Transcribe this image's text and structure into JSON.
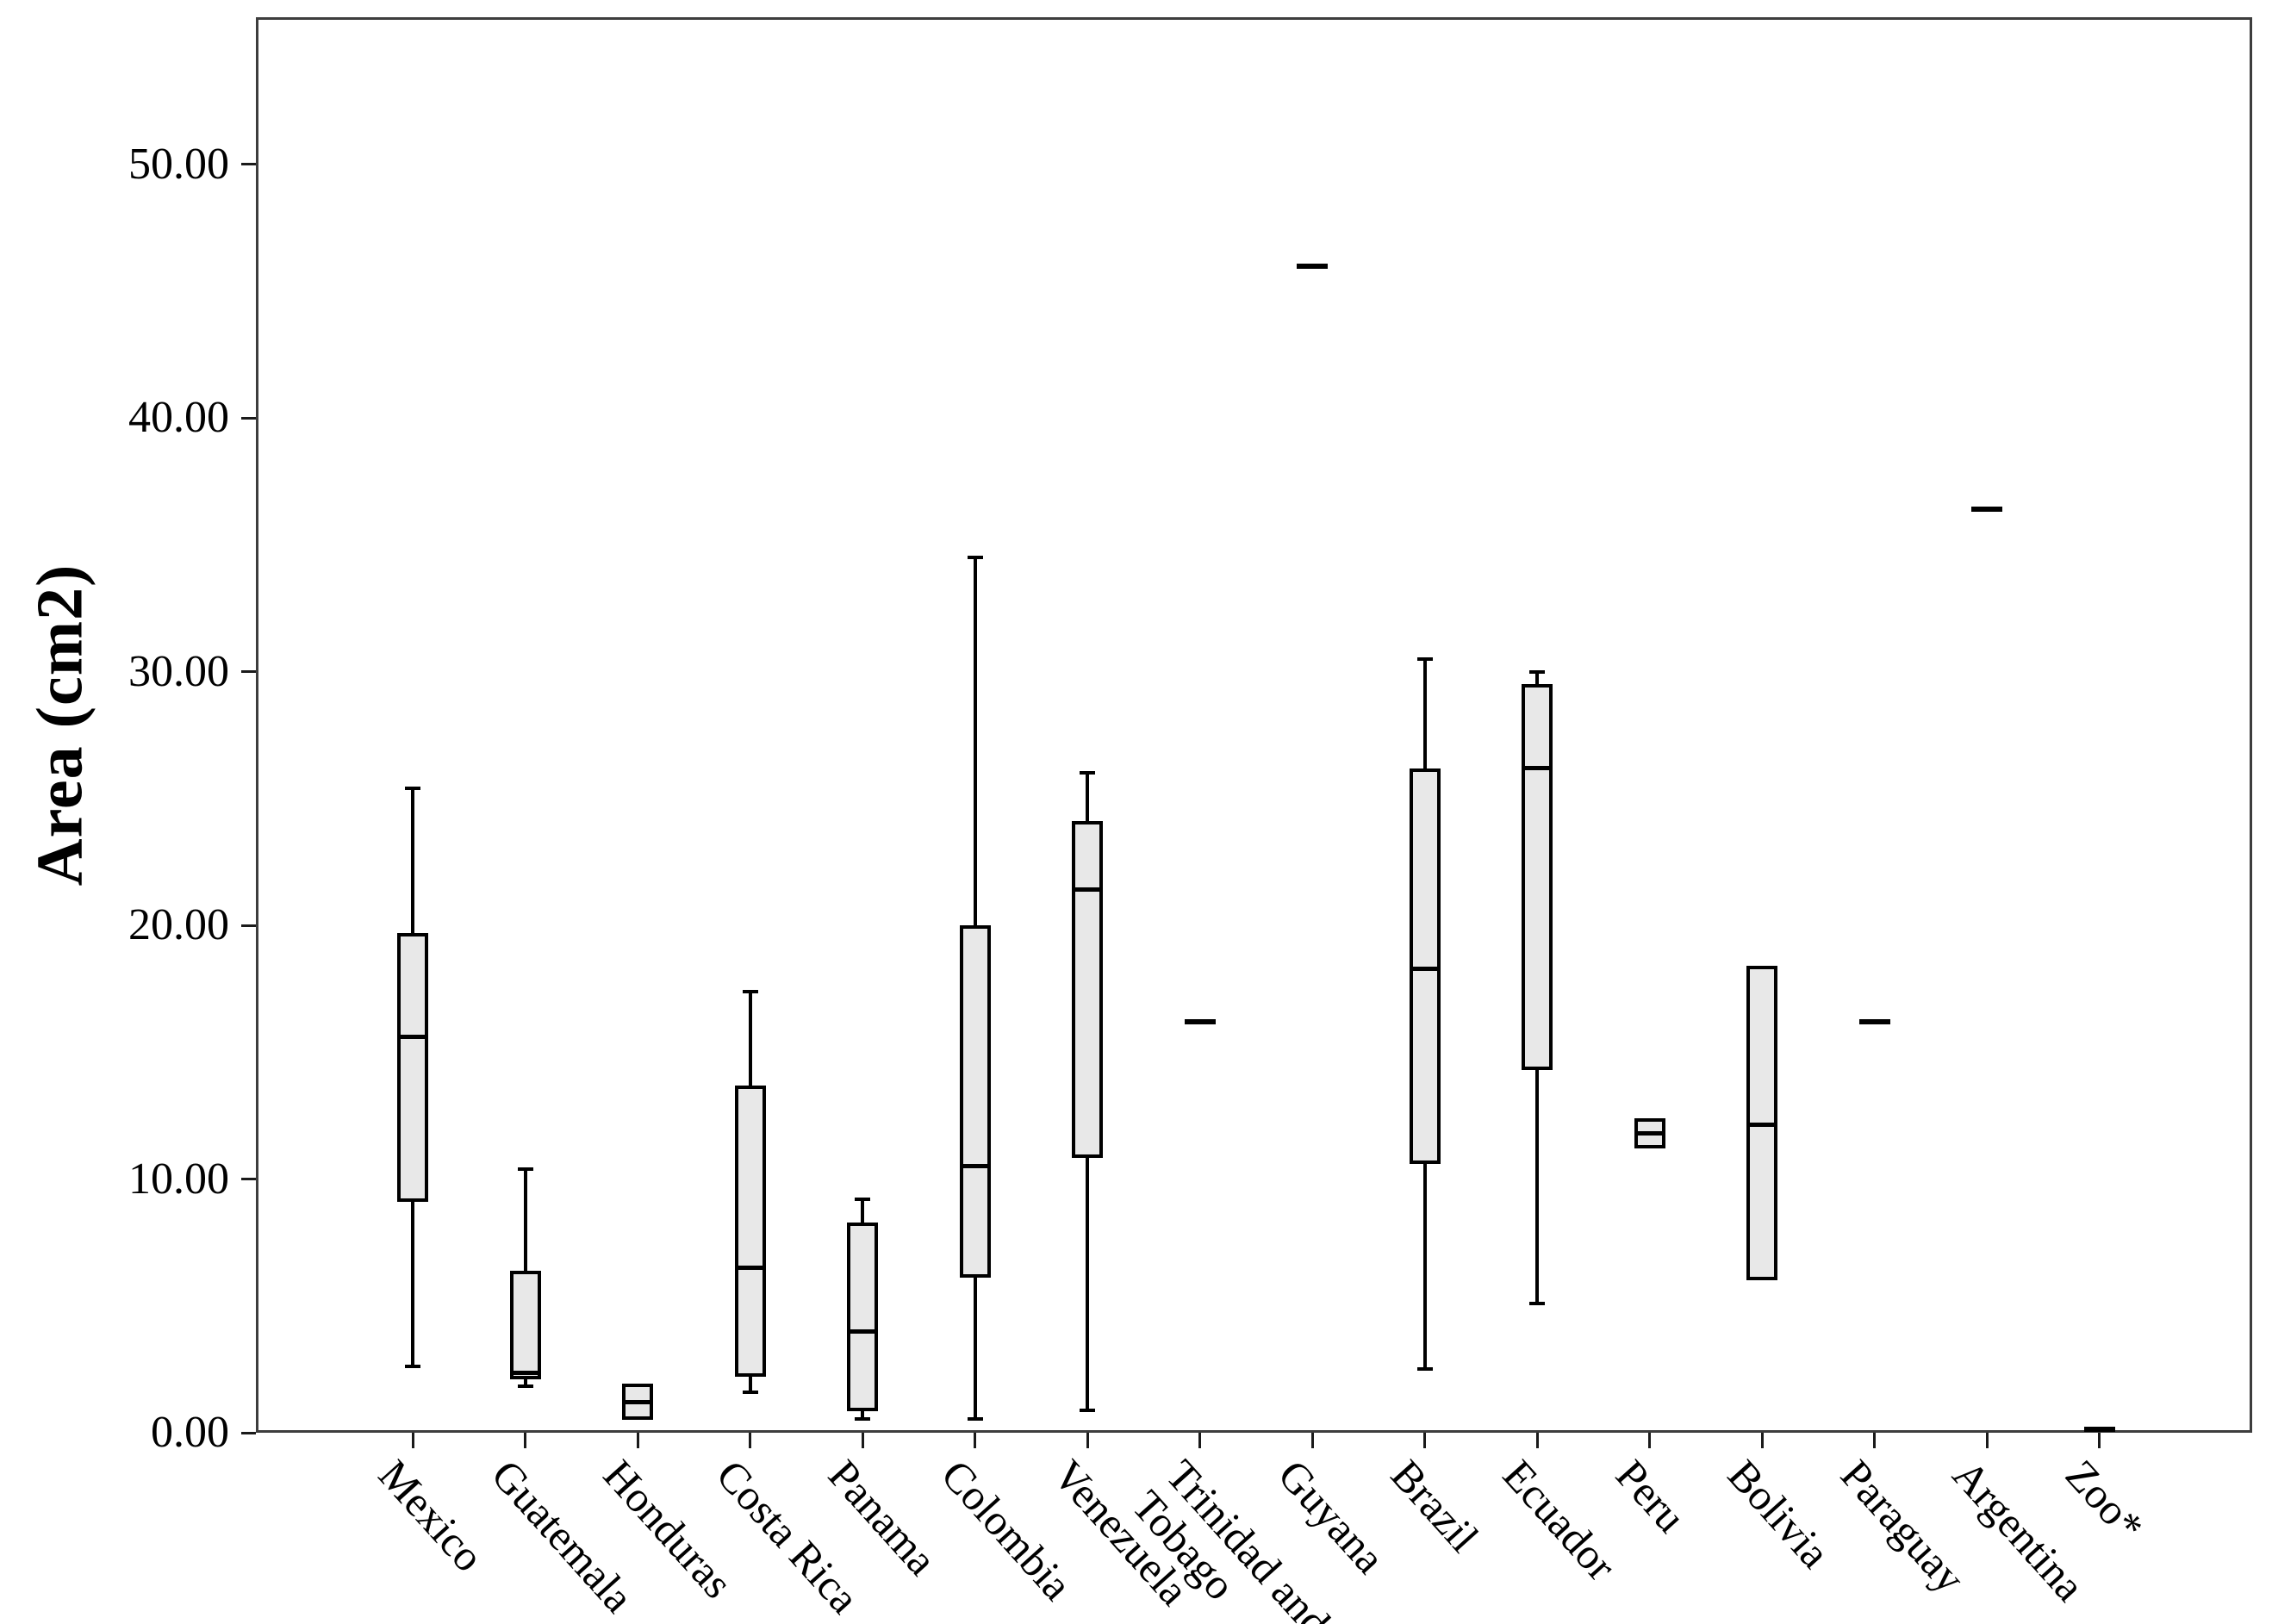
{
  "chart_data": {
    "type": "boxplot",
    "title": "",
    "xlabel": "",
    "ylabel": "Area (cm2)",
    "ylim": [
      0,
      55.8
    ],
    "grid": false,
    "legend": null,
    "colors": {
      "box_fill": "#e8e8e8",
      "line": "#000000",
      "frame": "#3d3d3d",
      "background": "#ffffff"
    },
    "yticks": [
      {
        "value": 0,
        "label": "0.00"
      },
      {
        "value": 10,
        "label": "10.00"
      },
      {
        "value": 20,
        "label": "20.00"
      },
      {
        "value": 30,
        "label": "30.00"
      },
      {
        "value": 40,
        "label": "40.00"
      },
      {
        "value": 50,
        "label": "50.00"
      }
    ],
    "categories": [
      {
        "label": "Mexico",
        "lines": [
          "Mexico"
        ]
      },
      {
        "label": "Guatemala",
        "lines": [
          "Guatemala"
        ]
      },
      {
        "label": "Honduras",
        "lines": [
          "Honduras"
        ]
      },
      {
        "label": "Costa Rica",
        "lines": [
          "Costa Rica"
        ]
      },
      {
        "label": "Panama",
        "lines": [
          "Panama"
        ]
      },
      {
        "label": "Colombia",
        "lines": [
          "Colombia"
        ]
      },
      {
        "label": "Venezuela",
        "lines": [
          "Venezuela"
        ]
      },
      {
        "label": "Trinidad and Tobago",
        "lines": [
          "Trinidad and",
          "Tobago"
        ]
      },
      {
        "label": "Guyana",
        "lines": [
          "Guyana"
        ]
      },
      {
        "label": "Brazil",
        "lines": [
          "Brazil"
        ]
      },
      {
        "label": "Ecuador",
        "lines": [
          "Ecuador"
        ]
      },
      {
        "label": "Peru",
        "lines": [
          "Peru"
        ]
      },
      {
        "label": "Bolivia",
        "lines": [
          "Bolivia"
        ]
      },
      {
        "label": "Paraguay",
        "lines": [
          "Paraguay"
        ]
      },
      {
        "label": "Argentina",
        "lines": [
          "Argentina"
        ]
      },
      {
        "label": "Zoo*",
        "lines": [
          "Zoo*"
        ]
      }
    ],
    "series": [
      {
        "category": "Mexico",
        "low": 2.6,
        "q1": 9.1,
        "median": 15.6,
        "q3": 19.7,
        "high": 25.4
      },
      {
        "category": "Guatemala",
        "low": 1.85,
        "q1": 2.1,
        "median": 2.35,
        "q3": 6.4,
        "high": 10.4
      },
      {
        "category": "Honduras",
        "q1": 0.5,
        "median": 1.2,
        "q3": 1.95
      },
      {
        "category": "Costa Rica",
        "low": 1.6,
        "q1": 2.2,
        "median": 6.5,
        "q3": 13.7,
        "high": 17.4
      },
      {
        "category": "Panama",
        "low": 0.55,
        "q1": 0.85,
        "median": 4.0,
        "q3": 8.3,
        "high": 9.2
      },
      {
        "category": "Colombia",
        "low": 0.55,
        "q1": 6.1,
        "median": 10.5,
        "q3": 20.0,
        "high": 34.5
      },
      {
        "category": "Venezuela",
        "low": 0.9,
        "q1": 10.85,
        "median": 21.4,
        "q3": 24.1,
        "high": 26.0
      },
      {
        "category": "Trinidad and Tobago",
        "value": 16.2
      },
      {
        "category": "Guyana",
        "value": 46.0
      },
      {
        "category": "Brazil",
        "low": 2.5,
        "q1": 10.6,
        "median": 18.3,
        "q3": 26.2,
        "high": 30.5
      },
      {
        "category": "Ecuador",
        "low": 5.1,
        "q1": 14.3,
        "median": 26.2,
        "q3": 29.5,
        "high": 30.0
      },
      {
        "category": "Peru",
        "q1": 11.2,
        "median": 11.8,
        "q3": 12.4
      },
      {
        "category": "Bolivia",
        "q1": 6.0,
        "median": 12.15,
        "q3": 18.4
      },
      {
        "category": "Paraguay",
        "value": 16.2
      },
      {
        "category": "Argentina",
        "value": 36.4
      },
      {
        "category": "Zoo*",
        "value": 0.12
      }
    ]
  }
}
